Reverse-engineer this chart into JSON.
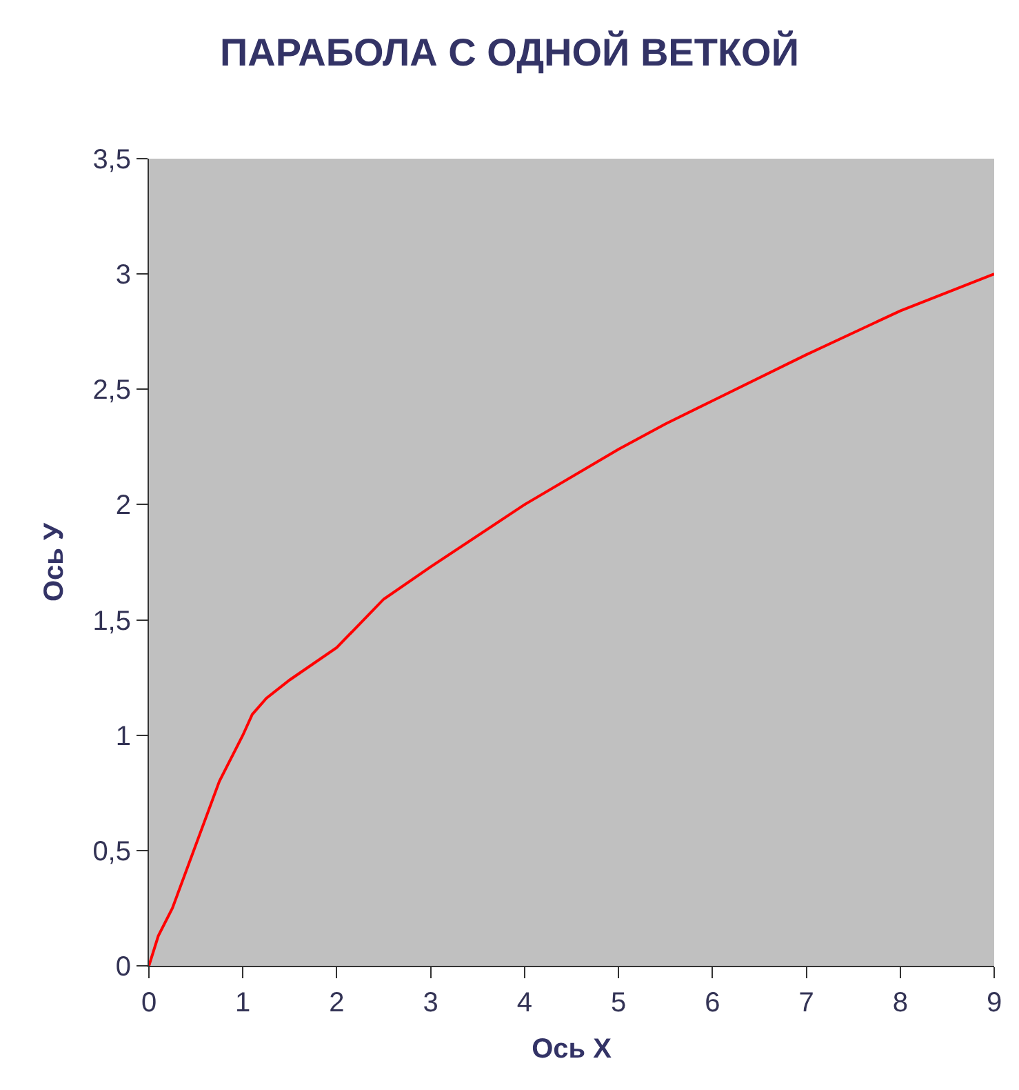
{
  "chart_data": {
    "type": "line",
    "title": "ПАРАБОЛА С ОДНОЙ ВЕТКОЙ",
    "xlabel": "Ось Х",
    "ylabel": "Ось У",
    "x": [
      0,
      0.1,
      0.25,
      0.75,
      1,
      1.1,
      1.25,
      1.5,
      2,
      2.5,
      3,
      4,
      5,
      5.5,
      6,
      7,
      8,
      8.5,
      9
    ],
    "series": [
      {
        "color": "#ff0000",
        "values": [
          0,
          0.13,
          0.25,
          0.8,
          1.0,
          1.09,
          1.16,
          1.24,
          1.38,
          1.59,
          1.73,
          2.0,
          2.24,
          2.35,
          2.45,
          2.65,
          2.84,
          2.92,
          3.0
        ]
      }
    ],
    "xlim": [
      0,
      9
    ],
    "xticks": [
      0,
      1,
      2,
      3,
      4,
      5,
      6,
      7,
      8,
      9
    ],
    "ylim": [
      0,
      3.5
    ],
    "yticks": [
      0,
      {
        "value": 0.5,
        "label": "0,5"
      },
      1,
      {
        "value": 1.5,
        "label": "1,5"
      },
      2,
      {
        "value": 2.5,
        "label": "2,5"
      },
      3,
      {
        "value": 3.5,
        "label": "3,5"
      }
    ],
    "grid": false,
    "marker": "none",
    "line_style": "solid"
  }
}
